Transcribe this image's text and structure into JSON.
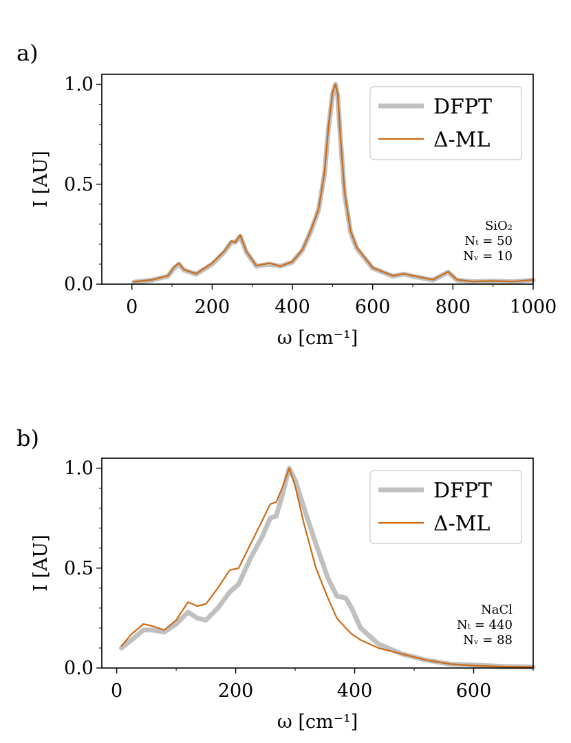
{
  "chart_data": [
    {
      "type": "line",
      "panel_label": "a)",
      "xlabel": "ω [cm⁻¹]",
      "ylabel": "I [AU]",
      "xlim": [
        -75,
        1000
      ],
      "ylim": [
        0,
        1.05
      ],
      "xticks": [
        0,
        200,
        400,
        600,
        800,
        1000
      ],
      "xtick_labels": [
        "0",
        "200",
        "400",
        "600",
        "800",
        "1000"
      ],
      "yticks": [
        0.0,
        0.5,
        1.0
      ],
      "ytick_labels": [
        "0.0",
        "0.5",
        "1.0"
      ],
      "legend_position": "top-right",
      "annotation": [
        "SiO₂",
        "Nₜ = 50",
        "Nᵥ = 10"
      ],
      "series": [
        {
          "name": "DFPT",
          "color": "#c0c0c0",
          "x": [
            5,
            50,
            90,
            105,
            117,
            130,
            160,
            200,
            230,
            248,
            258,
            270,
            285,
            310,
            342,
            370,
            400,
            425,
            445,
            465,
            480,
            490,
            500,
            507,
            513,
            520,
            530,
            545,
            560,
            600,
            650,
            678,
            700,
            750,
            788,
            810,
            850,
            900,
            950,
            1000
          ],
          "y": [
            0.01,
            0.02,
            0.04,
            0.08,
            0.1,
            0.07,
            0.05,
            0.1,
            0.16,
            0.21,
            0.21,
            0.24,
            0.16,
            0.09,
            0.1,
            0.09,
            0.11,
            0.17,
            0.26,
            0.37,
            0.55,
            0.78,
            0.95,
            1.0,
            0.94,
            0.72,
            0.45,
            0.26,
            0.18,
            0.08,
            0.04,
            0.05,
            0.04,
            0.02,
            0.06,
            0.02,
            0.012,
            0.015,
            0.012,
            0.02
          ]
        },
        {
          "name": "Δ-ML",
          "color": "#cc6a14",
          "x": [
            5,
            50,
            90,
            105,
            117,
            130,
            160,
            200,
            230,
            248,
            258,
            270,
            285,
            310,
            342,
            370,
            400,
            425,
            445,
            465,
            480,
            490,
            500,
            507,
            513,
            520,
            530,
            545,
            560,
            600,
            650,
            678,
            700,
            750,
            788,
            810,
            850,
            900,
            950,
            1000
          ],
          "y": [
            0.012,
            0.021,
            0.042,
            0.085,
            0.105,
            0.072,
            0.052,
            0.105,
            0.165,
            0.215,
            0.21,
            0.245,
            0.165,
            0.092,
            0.105,
            0.09,
            0.112,
            0.172,
            0.265,
            0.375,
            0.56,
            0.79,
            0.96,
            1.0,
            0.95,
            0.73,
            0.46,
            0.265,
            0.185,
            0.082,
            0.042,
            0.052,
            0.042,
            0.022,
            0.062,
            0.022,
            0.013,
            0.016,
            0.013,
            0.021
          ]
        }
      ]
    },
    {
      "type": "line",
      "panel_label": "b)",
      "xlabel": "ω [cm⁻¹]",
      "ylabel": "I [AU]",
      "xlim": [
        -25,
        700
      ],
      "ylim": [
        0,
        1.05
      ],
      "xticks": [
        0,
        200,
        400,
        600
      ],
      "xtick_labels": [
        "0",
        "200",
        "400",
        "600"
      ],
      "yticks": [
        0.0,
        0.5,
        1.0
      ],
      "ytick_labels": [
        "0.0",
        "0.5",
        "1.0"
      ],
      "legend_position": "top-right",
      "annotation": [
        "NaCl",
        "Nₜ = 440",
        "Nᵥ = 88"
      ],
      "series": [
        {
          "name": "DFPT",
          "color": "#c0c0c0",
          "x": [
            8,
            25,
            45,
            60,
            80,
            100,
            120,
            135,
            150,
            170,
            190,
            205,
            225,
            245,
            258,
            268,
            278,
            290,
            300,
            315,
            335,
            355,
            370,
            385,
            395,
            410,
            440,
            480,
            520,
            560,
            600,
            650,
            700
          ],
          "y": [
            0.1,
            0.14,
            0.19,
            0.19,
            0.18,
            0.22,
            0.28,
            0.25,
            0.24,
            0.3,
            0.38,
            0.42,
            0.55,
            0.66,
            0.75,
            0.76,
            0.86,
            1.0,
            0.94,
            0.8,
            0.62,
            0.45,
            0.36,
            0.35,
            0.3,
            0.2,
            0.12,
            0.07,
            0.04,
            0.02,
            0.015,
            0.008,
            0.005
          ]
        },
        {
          "name": "Δ-ML",
          "color": "#cc6a14",
          "x": [
            8,
            25,
            45,
            60,
            80,
            100,
            120,
            135,
            150,
            170,
            190,
            205,
            225,
            245,
            258,
            268,
            278,
            290,
            300,
            315,
            335,
            355,
            370,
            385,
            395,
            410,
            440,
            480,
            520,
            560,
            600,
            650,
            700
          ],
          "y": [
            0.11,
            0.17,
            0.22,
            0.21,
            0.19,
            0.24,
            0.33,
            0.31,
            0.32,
            0.4,
            0.49,
            0.5,
            0.62,
            0.74,
            0.82,
            0.83,
            0.9,
            1.0,
            0.91,
            0.72,
            0.5,
            0.35,
            0.25,
            0.2,
            0.17,
            0.14,
            0.1,
            0.07,
            0.04,
            0.02,
            0.012,
            0.007,
            0.005
          ]
        }
      ]
    }
  ]
}
